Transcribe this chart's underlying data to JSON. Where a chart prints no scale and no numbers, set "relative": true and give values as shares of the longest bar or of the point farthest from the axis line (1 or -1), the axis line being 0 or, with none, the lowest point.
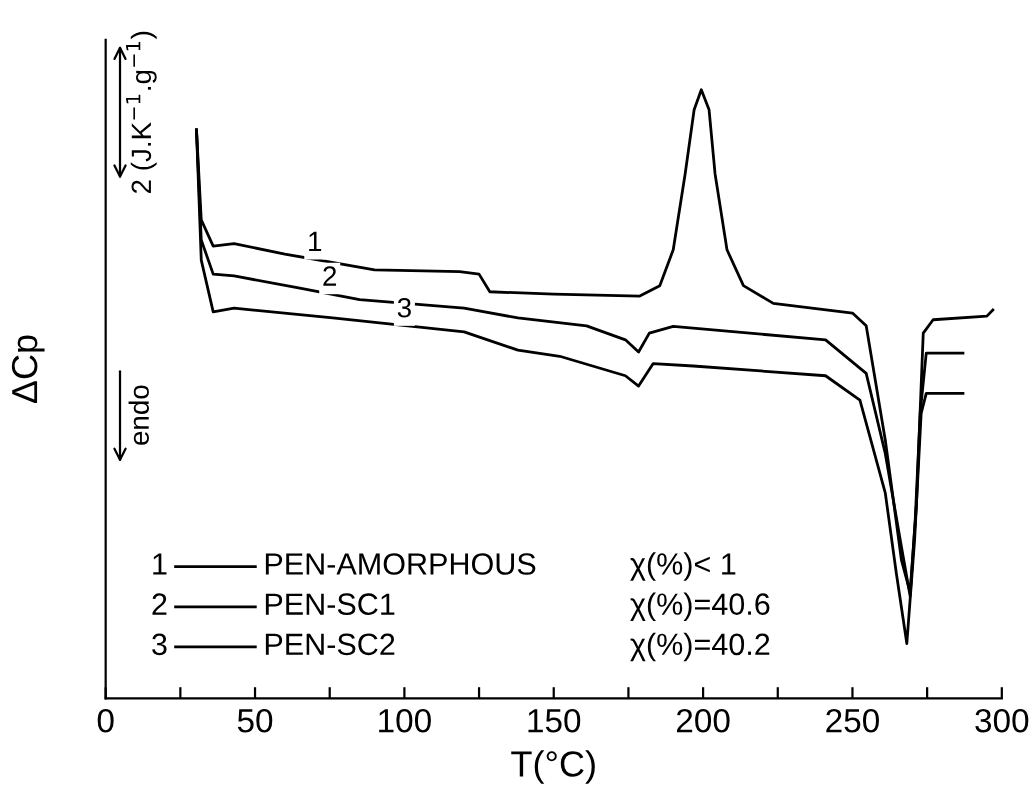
{
  "chart_data": {
    "type": "line",
    "relative": true,
    "xlabel": "T(°C)",
    "ylabel": "ΔCp",
    "xlim": [
      0,
      300
    ],
    "xticks": [
      0,
      {
        "value": 25,
        "label": null
      },
      50,
      {
        "value": 75,
        "label": null
      },
      100,
      {
        "value": 125,
        "label": null
      },
      150,
      {
        "value": 175,
        "label": null
      },
      200,
      {
        "value": 225,
        "label": null
      },
      250,
      {
        "value": 275,
        "label": null
      },
      300
    ],
    "legend": "bottom left",
    "grid": false,
    "marker": "none",
    "line_style": "solid",
    "series": [
      {
        "name": "PEN-AMORPHOUS",
        "color": "#000000",
        "x": [
          30.4,
          32,
          36,
          43,
          60,
          90,
          118.5,
          125,
          128.6,
          150,
          178.8,
          185.5,
          190,
          194,
          197,
          199.4,
          202,
          204,
          208,
          213.5,
          223.5,
          250,
          254.6,
          261,
          266.4,
          269.3,
          271.4,
          273.7,
          277,
          295,
          297
        ],
        "values": [
          0.934,
          0.786,
          0.743,
          0.747,
          0.73,
          0.704,
          0.701,
          0.697,
          0.668,
          0.664,
          0.661,
          0.678,
          0.737,
          0.862,
          0.967,
          1.0,
          0.967,
          0.862,
          0.737,
          0.678,
          0.649,
          0.633,
          0.612,
          0.424,
          0.227,
          0.174,
          0.316,
          0.6,
          0.622,
          0.628,
          0.638
        ]
      },
      {
        "name": "PEN-SC1",
        "color": "#000000",
        "x": [
          30.4,
          32,
          36,
          43,
          65,
          85,
          120,
          138,
          161,
          174,
          178.4,
          182,
          190,
          241,
          254.6,
          261,
          266,
          269.3,
          271,
          272.7,
          274.7,
          287
        ],
        "values": [
          0.934,
          0.753,
          0.697,
          0.694,
          0.674,
          0.655,
          0.641,
          0.625,
          0.612,
          0.589,
          0.569,
          0.6,
          0.611,
          0.589,
          0.534,
          0.402,
          0.26,
          0.168,
          0.293,
          0.47,
          0.567,
          0.567
        ]
      },
      {
        "name": "PEN-SC2",
        "color": "#000000",
        "x": [
          30.4,
          32,
          36,
          43,
          76,
          120,
          138,
          152,
          174,
          178.4,
          183.3,
          196.7,
          241,
          252.5,
          261,
          264.7,
          268.2,
          270.8,
          273,
          274.7,
          287
        ],
        "values": [
          0.934,
          0.72,
          0.635,
          0.641,
          0.625,
          0.602,
          0.572,
          0.562,
          0.53,
          0.513,
          0.55,
          0.546,
          0.53,
          0.49,
          0.337,
          0.205,
          0.09,
          0.26,
          0.468,
          0.501,
          0.501
        ]
      }
    ],
    "annotations": [
      {
        "text": "1",
        "x": 70,
        "y": 0.721
      },
      {
        "text": "2",
        "x": 75,
        "y": 0.664
      },
      {
        "text": "3",
        "x": 100,
        "y": 0.612
      },
      "χ(%)< 1",
      "χ(%)=40.6",
      "χ(%)=40.2",
      "2 (J.K$^{−1}$.g$^{−1}$)",
      "endo"
    ]
  }
}
